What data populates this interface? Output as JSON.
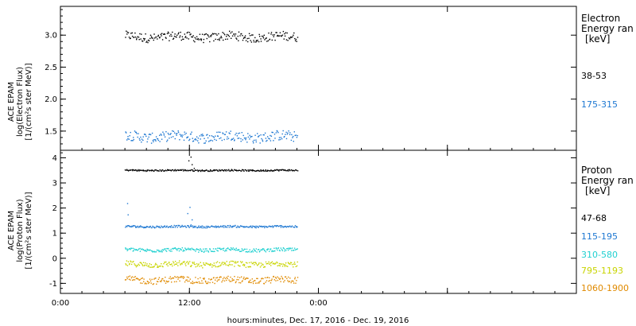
{
  "chart_data": [
    {
      "type": "scatter",
      "panel": "electron",
      "ylabel_lines": [
        "ACE EPAM",
        "log(Electron Flux)",
        "[1/(cm²s ster MeV)]"
      ],
      "ylim": [
        1.2,
        3.45
      ],
      "yticks": [
        1.5,
        2.0,
        2.5,
        3.0
      ],
      "ytick_labels": [
        "1.5",
        "2.0",
        "2.5",
        "3.0"
      ],
      "legend_title_lines": [
        "Electron",
        "Energy ran",
        "[keV]"
      ],
      "series": [
        {
          "name": "38-53",
          "color": "#000000",
          "center": 2.98,
          "spread": 0.07,
          "spikes": []
        },
        {
          "name": "175-315",
          "color": "#1e78d2",
          "center": 1.42,
          "spread": 0.08,
          "spikes": []
        }
      ]
    },
    {
      "type": "scatter",
      "panel": "proton",
      "ylabel_lines": [
        "ACE EPAM",
        "log(Proton Flux)",
        "[1/(cm²s ster MeV)]"
      ],
      "ylim": [
        -1.4,
        4.3
      ],
      "yticks": [
        -1,
        0,
        1,
        2,
        3,
        4
      ],
      "ytick_labels": [
        "-1",
        "0",
        "1",
        "2",
        "3",
        "4"
      ],
      "legend_title_lines": [
        "Proton",
        "Energy ran",
        "[keV]"
      ],
      "series": [
        {
          "name": "47-68",
          "color": "#000000",
          "center": 3.52,
          "spread": 0.03,
          "spikes": [
            [
              11.9,
              3.9
            ],
            [
              12.1,
              4.05
            ],
            [
              12.2,
              3.75
            ],
            [
              12.4,
              3.6
            ]
          ]
        },
        {
          "name": "115-195",
          "color": "#1e78d2",
          "center": 1.28,
          "spread": 0.04,
          "spikes": [
            [
              6.2,
              2.2
            ],
            [
              6.25,
              1.75
            ],
            [
              11.8,
              1.8
            ],
            [
              12.0,
              2.05
            ],
            [
              12.2,
              1.55
            ],
            [
              12.1,
              1.35
            ]
          ]
        },
        {
          "name": "310-580",
          "color": "#20d0d0",
          "center": 0.35,
          "spread": 0.07,
          "spikes": []
        },
        {
          "name": "795-1193",
          "color": "#c8d400",
          "center": -0.22,
          "spread": 0.11,
          "spikes": []
        },
        {
          "name": "1060-1900",
          "color": "#e08a00",
          "center": -0.85,
          "spread": 0.13,
          "spikes": []
        }
      ]
    }
  ],
  "x_axis": {
    "xlim": [
      0,
      48
    ],
    "data_range": [
      6,
      22
    ],
    "ticks": [
      0,
      12,
      24
    ],
    "tick_labels": [
      "0:00",
      "12:00",
      "0:00"
    ],
    "xlabel": "hours:minutes, Dec. 17, 2016 - Dec. 19, 2016"
  }
}
